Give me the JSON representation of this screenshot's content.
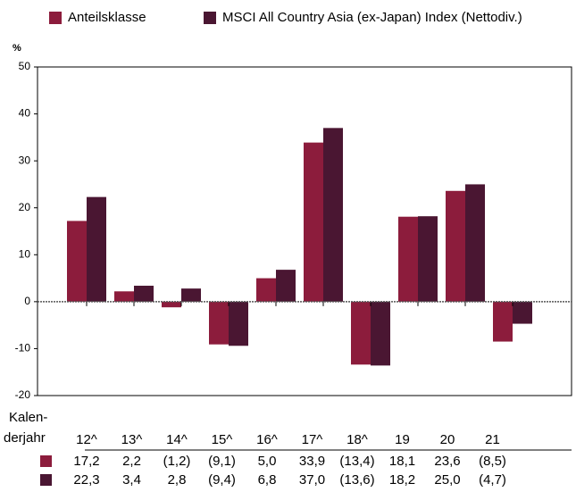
{
  "chart_data": {
    "type": "bar",
    "y_label": "%",
    "x_label_lines": [
      "Kalen-",
      "derjahr"
    ],
    "categories": [
      "12^",
      "13^",
      "14^",
      "15^",
      "16^",
      "17^",
      "18^",
      "19",
      "20",
      "21"
    ],
    "series": [
      {
        "name": "Anteilsklasse",
        "color": "#8c1c3c",
        "values": [
          17.2,
          2.2,
          -1.2,
          -9.1,
          5.0,
          33.9,
          -13.4,
          18.1,
          23.6,
          -8.5
        ],
        "value_labels": [
          "17,2",
          "2,2",
          "(1,2)",
          "(9,1)",
          "5,0",
          "33,9",
          "(13,4)",
          "18,1",
          "23,6",
          "(8,5)"
        ]
      },
      {
        "name": "MSCI All Country Asia (ex-Japan) Index (Nettodiv.)",
        "color": "#4a1632",
        "values": [
          22.3,
          3.4,
          2.8,
          -9.4,
          6.8,
          37.0,
          -13.6,
          18.2,
          25.0,
          -4.7
        ],
        "value_labels": [
          "22,3",
          "3,4",
          "2,8",
          "(9,4)",
          "6,8",
          "37,0",
          "(13,6)",
          "18,2",
          "25,0",
          "(4,7)"
        ]
      }
    ],
    "ylim": [
      -20,
      50
    ],
    "yticks": [
      -20,
      -10,
      0,
      10,
      20,
      30,
      40,
      50
    ],
    "grid": false
  }
}
